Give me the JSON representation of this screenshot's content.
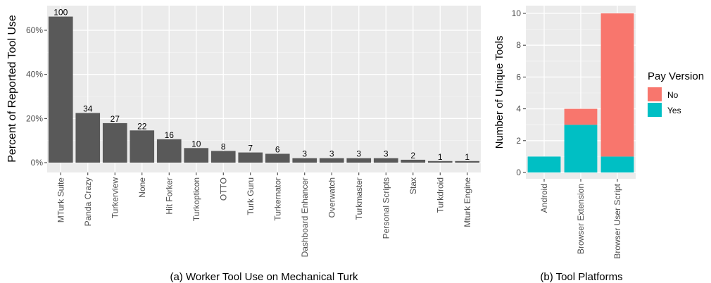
{
  "chart_data": [
    {
      "type": "bar",
      "title": "",
      "caption": "(a) Worker Tool Use on Mechanical Turk",
      "xlabel": "",
      "ylabel": "Percent of Reported Tool Use",
      "ylim": [
        0,
        70
      ],
      "yticks": [
        "0%",
        "20%",
        "40%",
        "60%"
      ],
      "ytick_values": [
        0,
        20,
        40,
        60
      ],
      "grid": true,
      "bar_color": "#595959",
      "categories": [
        "MTurk Suite",
        "Panda Crazy",
        "Turkerview",
        "None",
        "Hit Forker",
        "Turkopticon",
        "OTTO",
        "Turk Guru",
        "Turkernator",
        "Dashboard Enhancer",
        "Overwatch",
        "Turkmaster",
        "Personal Scripts",
        "Stax",
        "Turkdroid",
        "Mturk Engine"
      ],
      "values": [
        66.2,
        22.5,
        17.9,
        14.6,
        10.6,
        6.6,
        5.3,
        4.6,
        4.0,
        2.0,
        2.0,
        2.0,
        2.0,
        1.3,
        0.7,
        0.7
      ],
      "data_labels": [
        "100",
        "34",
        "27",
        "22",
        "16",
        "10",
        "8",
        "7",
        "6",
        "3",
        "3",
        "3",
        "3",
        "2",
        "1",
        "1"
      ]
    },
    {
      "type": "bar",
      "stacked": true,
      "title": "",
      "caption": "(b) Tool Platforms",
      "xlabel": "",
      "ylabel": "Number of Unique Tools",
      "ylim": [
        0,
        10.5
      ],
      "yticks": [
        "0",
        "2",
        "4",
        "6",
        "8",
        "10"
      ],
      "ytick_values": [
        0,
        2,
        4,
        6,
        8,
        10
      ],
      "grid": true,
      "categories": [
        "Android",
        "Browser Extension",
        "Browser User Script"
      ],
      "series": [
        {
          "name": "Yes",
          "color": "#00BFC4",
          "values": [
            1,
            3,
            1
          ]
        },
        {
          "name": "No",
          "color": "#F8766D",
          "values": [
            0,
            1,
            9
          ]
        }
      ],
      "legend": {
        "title": "Pay Version",
        "position": "right",
        "order": [
          "No",
          "Yes"
        ]
      }
    }
  ]
}
